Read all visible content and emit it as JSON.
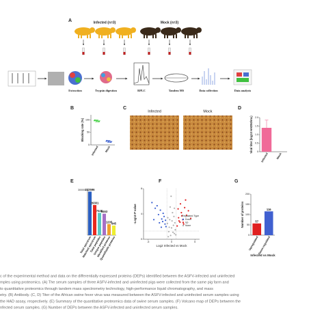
{
  "workflow": {
    "panel": "A",
    "groups": [
      "Infected (n=3)",
      "Mock (n=3)"
    ],
    "steps": [
      "Extraction",
      "Trypsin digestion",
      "RPLC",
      "Tandem MS",
      "Data collection",
      "Data analysis"
    ]
  },
  "micrographs": {
    "panel": "C",
    "labels": [
      "Infected",
      "Mock"
    ]
  },
  "chart_data": [
    {
      "panel": "B",
      "type": "dot",
      "ylabel": "Blocking rate (%)",
      "categories": [
        "Infected",
        "Mock"
      ],
      "values": [
        96,
        14
      ],
      "errors": [
        4,
        4
      ],
      "colors": [
        "#3fcf3f",
        "#3a5fd0"
      ],
      "ylim": [
        0,
        120
      ],
      "yticks": [
        0,
        50,
        100
      ]
    },
    {
      "panel": "D",
      "type": "bar",
      "ylabel": "Viral titer (log10 HAD50/mL)",
      "categories": [
        "Infected",
        "Mock"
      ],
      "values": [
        1.4,
        0
      ],
      "errors": [
        0.45,
        0
      ],
      "color": "#f06a98",
      "ylim": [
        0,
        2
      ],
      "yticks": [
        0,
        0.5,
        {
          "value": 1,
          "label": "1.0"
        },
        1.5,
        {
          "value": 2,
          "label": "2.0"
        }
      ]
    },
    {
      "panel": "E",
      "type": "bar",
      "log": true,
      "data_labels": true,
      "categories": [
        "Total spectrum",
        "Matched spectrum",
        "Total peptides",
        "Unique peptides",
        "Identified proteins",
        "Quantifiable proteins"
      ],
      "values": [
        232596,
        26301,
        7448,
        6463,
        1205,
        945
      ],
      "colors": [
        "#2a5fc2",
        "#e8281e",
        "#5bc8c4",
        "#a56fc7",
        "#f0a030",
        "#eeee30"
      ],
      "ylim": [
        200,
        300000
      ],
      "yticks": [
        300000
      ]
    },
    {
      "panel": "F",
      "type": "scatter",
      "xlabel": "Log2 Infected vs Mock",
      "ylabel": "-Log10 P value",
      "legend_title": "Regulated Type",
      "legend": "right",
      "xlim": [
        -6,
        6
      ],
      "ylim": [
        0,
        8
      ],
      "xticks": [
        -5,
        0,
        5
      ],
      "yticks": [
        0,
        4,
        8
      ],
      "series": [
        {
          "name": "Down",
          "color": "#3a5fd0",
          "x": [
            -4.2,
            -3.5,
            -3.1,
            -2.8,
            -2.4,
            -2.1,
            -1.9,
            -1.6,
            -1.4,
            -1.2,
            -3.8,
            -2.6,
            -1.8,
            -1.3,
            -2.2
          ],
          "y": [
            5.8,
            4.9,
            5.3,
            3.9,
            4.6,
            3.2,
            2.8,
            3.6,
            2.4,
            2.0,
            3.1,
            2.6,
            4.1,
            3.0,
            1.9
          ]
        },
        {
          "name": "Up",
          "color": "#e02020",
          "x": [
            1.2,
            1.5,
            1.8,
            2.1,
            2.4,
            2.8,
            3.2,
            3.6,
            4.1,
            1.4,
            1.9,
            2.6,
            3.0,
            1.6,
            2.2
          ],
          "y": [
            2.1,
            3.4,
            2.7,
            4.2,
            3.1,
            5.0,
            3.8,
            4.5,
            3.3,
            4.8,
            5.6,
            2.4,
            6.2,
            2.9,
            3.7
          ]
        },
        {
          "name": "None",
          "color": "#b0b0b0",
          "x": [
            -0.9,
            -0.6,
            -0.4,
            -0.2,
            0,
            0.2,
            0.4,
            0.6,
            0.8,
            -0.7,
            -0.3,
            0.1,
            0.5,
            0.9,
            -0.5,
            0.3,
            -0.1,
            0.7,
            -0.8,
            0.6
          ],
          "y": [
            2.5,
            1.2,
            3.1,
            0.6,
            1.8,
            4.2,
            2.2,
            0.9,
            1.5,
            0.4,
            5.1,
            2.9,
            3.6,
            0.7,
            1.9,
            1.1,
            6.8,
            2.6,
            3.4,
            4.9
          ]
        }
      ]
    },
    {
      "panel": "G",
      "type": "bar",
      "data_labels": true,
      "xlabel": "Infected vs Mock",
      "ylabel": "Number of proteins",
      "categories": [
        "Upregulated",
        "Down-regulated"
      ],
      "values": [
        57,
        116
      ],
      "colors": [
        "#e02020",
        "#4060d0"
      ],
      "ylim": [
        0,
        200
      ],
      "yticks": [
        0,
        50,
        100,
        150,
        200
      ]
    }
  ],
  "caption": [
    "c of the experimental method and data on the differentially expressed proteins (DEPs) identified between the ASFV-infected and uninfected",
    "mples using proteomics. (A) The serum samples of three ASFV-infected and uninfected pigs were collected from the same pig farm and",
    "to quantitative proteomics through tandem mass spectrometry technology, high-performance liquid chromatography, and mass",
    "etry. (B) Antibody. (C, D) Titer of the African swine fever virus was measured between the ASFV-infected and uninfected serum samples using",
    "the HAD assay, respectively. (E) Summary of the quantitative proteomics data of swine serum samples. (F) Volcano map of DEPs between the",
    "nfected serum samples. (G) Number of DEPs between the ASFV-infected and uninfected serum samples."
  ]
}
